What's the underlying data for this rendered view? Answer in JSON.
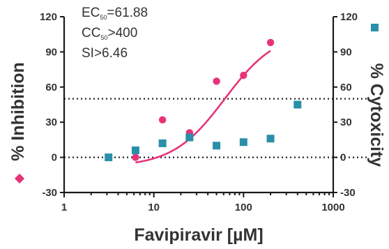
{
  "chart_data": {
    "type": "scatter",
    "title": "",
    "xlabel": "Favipiravir [µM]",
    "ylabel_left": "% Inhibition",
    "ylabel_right": "% Cytoxicity",
    "x_scale": "log",
    "xlim": [
      1,
      1000
    ],
    "x_ticks": [
      1,
      10,
      100,
      1000
    ],
    "x_tick_labels": [
      "1",
      "10",
      "100",
      "1000"
    ],
    "ylim": [
      -30,
      120
    ],
    "y_ticks": [
      -30,
      0,
      30,
      60,
      90,
      120
    ],
    "y_tick_labels": [
      "-30",
      "0",
      "30",
      "60",
      "90",
      "120"
    ],
    "reference_lines": [
      0,
      50
    ],
    "annotations": [
      {
        "main": "EC",
        "sub": "50",
        "rest": "=61.88"
      },
      {
        "main": "CC",
        "sub": "50",
        "rest": ">400"
      },
      {
        "main": "SI>6.46",
        "sub": "",
        "rest": ""
      }
    ],
    "series": [
      {
        "role": "inhibition",
        "marker": "circle",
        "color": "#e6337a",
        "points": [
          {
            "x": 6.25,
            "y": 0
          },
          {
            "x": 12.5,
            "y": 32
          },
          {
            "x": 25,
            "y": 21
          },
          {
            "x": 50,
            "y": 65
          },
          {
            "x": 100,
            "y": 70
          },
          {
            "x": 200,
            "y": 98
          }
        ],
        "fit": {
          "bottom": -8,
          "top": 108,
          "ec50": 61.88,
          "hill": 1.5,
          "x_range": [
            6.25,
            200
          ]
        }
      },
      {
        "role": "cytotoxicity",
        "marker": "square",
        "color": "#2a8fa8",
        "points": [
          {
            "x": 3.125,
            "y": 0
          },
          {
            "x": 6.25,
            "y": 6
          },
          {
            "x": 12.5,
            "y": 12
          },
          {
            "x": 25,
            "y": 17
          },
          {
            "x": 50,
            "y": 10
          },
          {
            "x": 100,
            "y": 13
          },
          {
            "x": 200,
            "y": 16
          },
          {
            "x": 400,
            "y": 45
          }
        ]
      }
    ]
  }
}
